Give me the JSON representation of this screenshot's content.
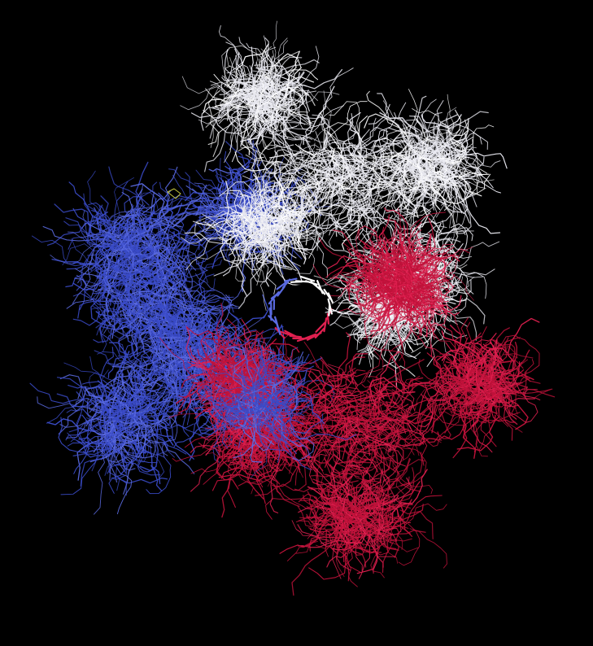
{
  "scene": {
    "subject": "protein-trimer-wireframe",
    "background": "#000000",
    "chains": [
      {
        "id": "chain-white",
        "color": "#e8e8f0",
        "highlight": "#ffffff"
      },
      {
        "id": "chain-blue",
        "color": "#3a4bc8",
        "highlight": "#5a6ae0"
      },
      {
        "id": "chain-red",
        "color": "#c0123a",
        "highlight": "#e02050"
      }
    ],
    "accent": "#c8c840"
  }
}
